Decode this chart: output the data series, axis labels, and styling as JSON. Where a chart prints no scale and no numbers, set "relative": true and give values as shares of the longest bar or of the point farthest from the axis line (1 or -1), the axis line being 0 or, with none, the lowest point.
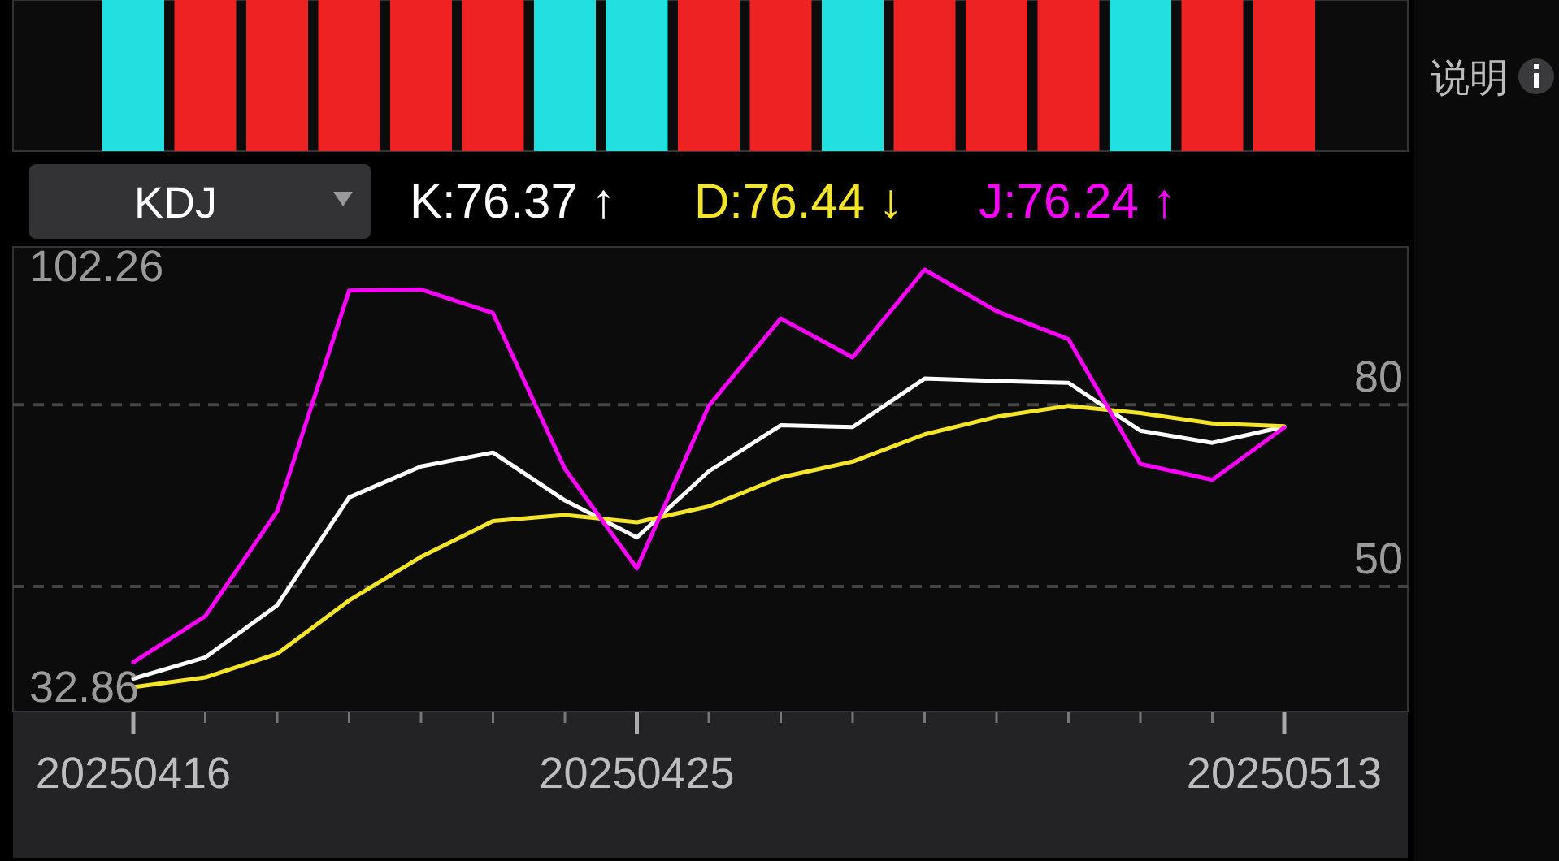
{
  "chart_data": [
    {
      "type": "bar",
      "relative": true,
      "categories": [
        null,
        null,
        null,
        null,
        null,
        null,
        null,
        null,
        null,
        null,
        null,
        null,
        null,
        null,
        null,
        null,
        null
      ],
      "values": [
        1,
        1,
        1,
        1,
        1,
        1,
        1,
        1,
        1,
        1,
        1,
        1,
        1,
        1,
        1,
        1,
        1
      ],
      "colors": [
        "#22e0e0",
        "#ee2222",
        "#ee2222",
        "#ee2222",
        "#ee2222",
        "#ee2222",
        "#22e0e0",
        "#22e0e0",
        "#ee2222",
        "#ee2222",
        "#22e0e0",
        "#ee2222",
        "#ee2222",
        "#ee2222",
        "#22e0e0",
        "#ee2222",
        "#ee2222"
      ]
    },
    {
      "type": "line",
      "title": "KDJ",
      "annotations": [
        "说明"
      ],
      "categories": [
        "20250416",
        null,
        null,
        null,
        null,
        null,
        null,
        "20250425",
        null,
        null,
        null,
        null,
        null,
        null,
        null,
        null,
        "20250513"
      ],
      "ylim": [
        32.86,
        102.26
      ],
      "yticks": [
        32.86,
        102.26
      ],
      "grid": false,
      "legend": "top",
      "ref_lines": [
        {
          "axis": "y",
          "value": 80,
          "label": "80",
          "color": "#444444",
          "line_style": "dashed"
        },
        {
          "axis": "y",
          "value": 50,
          "label": "50",
          "color": "#444444",
          "line_style": "dashed"
        }
      ],
      "series": [
        {
          "name": "K:76.37 ↑",
          "color": "#ffffff",
          "values": [
            34.8,
            38.3,
            46.9,
            64.7,
            69.8,
            72.1,
            64.2,
            58.1,
            69.0,
            76.6,
            76.3,
            84.3,
            83.9,
            83.6,
            75.7,
            73.7,
            76.37
          ]
        },
        {
          "name": "D:76.44 ↓",
          "color": "#f5e52a",
          "values": [
            33.4,
            35.0,
            38.9,
            47.7,
            54.9,
            60.8,
            61.8,
            60.6,
            63.2,
            68.0,
            70.6,
            75.1,
            78.0,
            79.8,
            78.6,
            76.9,
            76.44
          ]
        },
        {
          "name": "J:76.24 ↑",
          "color": "#ff00ff",
          "values": [
            37.5,
            45.1,
            62.4,
            98.8,
            99.0,
            95.1,
            69.4,
            53.0,
            79.8,
            94.2,
            87.8,
            102.26,
            95.4,
            90.8,
            70.2,
            67.6,
            76.24
          ]
        }
      ]
    }
  ]
}
